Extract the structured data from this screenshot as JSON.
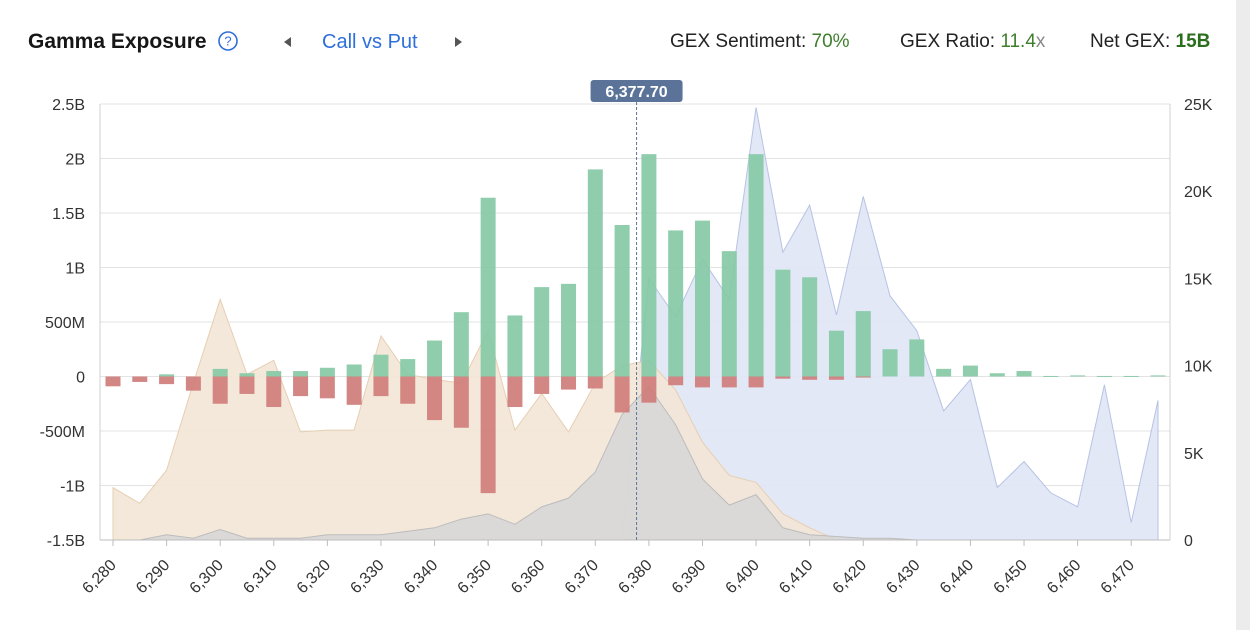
{
  "header": {
    "title": "Gamma Exposure",
    "nav_label": "Call vs Put",
    "sentiment_label": "GEX Sentiment:",
    "sentiment_value": "70%",
    "ratio_label": "GEX Ratio:",
    "ratio_value": "11.4",
    "ratio_suffix": "x",
    "net_label": "Net GEX:",
    "net_value": "15B"
  },
  "icons": {
    "help": "question-circle-icon",
    "prev": "triangle-left-icon",
    "next": "triangle-right-icon"
  },
  "colors": {
    "call_bar": "#86c9a6",
    "put_bar": "#cf7d7b",
    "call_area": "#dfe5f4",
    "put_area": "#f3e6d6",
    "overlap_area": "#d6d6d6",
    "spot_line": "#5b7399",
    "accent": "#2f6fdc"
  },
  "chart_data": {
    "type": "bar",
    "title": "Gamma Exposure",
    "xlabel": "",
    "ylabel": "",
    "y_left_lim": [
      -1500000000,
      2500000000
    ],
    "y_left_ticks": [
      -1500000000,
      -1000000000,
      -500000000,
      0,
      500000000,
      1000000000,
      1500000000,
      2000000000,
      2500000000
    ],
    "y_left_tick_labels": [
      "-1.5B",
      "-1B",
      "-500M",
      "0",
      "500M",
      "1B",
      "1.5B",
      "2B",
      "2.5B"
    ],
    "y_right_lim": [
      0,
      25000
    ],
    "y_right_ticks": [
      0,
      5000,
      10000,
      15000,
      20000,
      25000
    ],
    "y_right_tick_labels": [
      "0",
      "5K",
      "10K",
      "15K",
      "20K",
      "25K"
    ],
    "x_tick_labels": [
      "6,280",
      "6,290",
      "6,300",
      "6,310",
      "6,320",
      "6,330",
      "6,340",
      "6,350",
      "6,360",
      "6,370",
      "6,380",
      "6,390",
      "6,400",
      "6,410",
      "6,420",
      "6,430",
      "6,440",
      "6,450",
      "6,460",
      "6,470"
    ],
    "spot_price": 6377.7,
    "spot_label": "6,377.70",
    "grid": true,
    "strikes": [
      6280,
      6285,
      6290,
      6295,
      6300,
      6305,
      6310,
      6315,
      6320,
      6325,
      6330,
      6335,
      6340,
      6345,
      6350,
      6355,
      6360,
      6365,
      6370,
      6375,
      6380,
      6385,
      6390,
      6395,
      6400,
      6405,
      6410,
      6415,
      6420,
      6425,
      6430,
      6435,
      6440,
      6445,
      6450,
      6455,
      6460,
      6465,
      6470,
      6475
    ],
    "series": [
      {
        "kind": "bar-positive",
        "values": [
          0,
          0,
          20000000,
          0,
          70000000,
          30000000,
          50000000,
          50000000,
          80000000,
          110000000,
          200000000,
          160000000,
          330000000,
          590000000,
          1640000000,
          560000000,
          820000000,
          850000000,
          1900000000,
          1390000000,
          2040000000,
          1340000000,
          1430000000,
          1150000000,
          2040000000,
          980000000,
          910000000,
          420000000,
          600000000,
          250000000,
          340000000,
          70000000,
          100000000,
          30000000,
          50000000,
          5000000,
          10000000,
          5000000,
          5000000,
          10000000
        ]
      },
      {
        "kind": "bar-negative",
        "values": [
          -90000000,
          -50000000,
          -70000000,
          -130000000,
          -250000000,
          -160000000,
          -280000000,
          -180000000,
          -200000000,
          -260000000,
          -180000000,
          -250000000,
          -400000000,
          -470000000,
          -1070000000,
          -280000000,
          -160000000,
          -120000000,
          -110000000,
          -330000000,
          -240000000,
          -80000000,
          -100000000,
          -100000000,
          -100000000,
          -20000000,
          -30000000,
          -30000000,
          -10000000,
          0,
          0,
          0,
          0,
          0,
          0,
          0,
          0,
          0,
          0,
          0
        ]
      },
      {
        "kind": "area-right-axis",
        "values": [
          0,
          0,
          0,
          0,
          0,
          0,
          0,
          0,
          0,
          0,
          0,
          0,
          0,
          0,
          0,
          0,
          0,
          0,
          0,
          0,
          15000,
          12800,
          16100,
          13800,
          24800,
          16500,
          19200,
          12900,
          19700,
          14000,
          12000,
          7400,
          9200,
          3000,
          4500,
          2700,
          1900,
          8900,
          1000,
          8000
        ]
      },
      {
        "kind": "area-right-axis",
        "values": [
          3000,
          2100,
          4000,
          9000,
          13800,
          9500,
          10300,
          6200,
          6300,
          6300,
          11700,
          9500,
          9200,
          9000,
          12000,
          6300,
          8400,
          6200,
          9000,
          10000,
          10300,
          8600,
          5600,
          3700,
          3300,
          1500,
          700,
          0,
          0,
          0,
          0,
          0,
          0,
          0,
          0,
          0,
          0,
          0,
          0,
          0
        ]
      },
      {
        "kind": "area-right-axis",
        "values": [
          0,
          0,
          300,
          100,
          600,
          100,
          100,
          100,
          300,
          300,
          300,
          500,
          700,
          1200,
          1500,
          900,
          1900,
          2400,
          3900,
          7200,
          8800,
          6600,
          3500,
          2000,
          2600,
          700,
          300,
          200,
          100,
          100,
          0,
          0,
          0,
          0,
          0,
          0,
          0,
          0,
          0,
          0
        ]
      }
    ]
  }
}
